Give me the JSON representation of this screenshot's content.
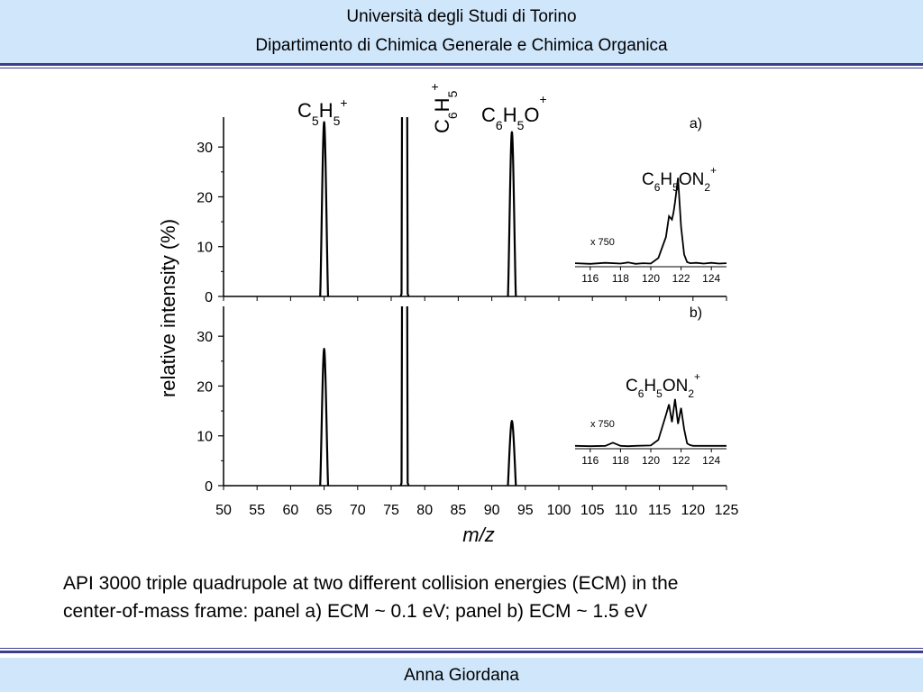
{
  "header": {
    "line1": "Università degli Studi di Torino",
    "line2": "Dipartimento di Chimica Generale e Chimica Organica"
  },
  "footer": {
    "author": "Anna Giordana"
  },
  "caption": {
    "line1": "API 3000 triple quadrupole at two different collision energies (ECM) in the",
    "line2": "center-of-mass frame: panel a) ECM ~ 0.1 eV;  panel b) ECM ~ 1.5 eV"
  },
  "colors": {
    "band": "#cfe6fb",
    "rule": "#3b3d8f",
    "trace": "#000000"
  },
  "chart_data": {
    "type": "line",
    "xlabel": "m/z",
    "ylabel": "relative intensity (%)",
    "xlim": [
      50,
      125
    ],
    "ylim": [
      0,
      36
    ],
    "x_ticks": [
      "50",
      "55",
      "60",
      "65",
      "70",
      "75",
      "80",
      "85",
      "90",
      "95",
      "100",
      "105",
      "110",
      "115",
      "120",
      "125"
    ],
    "y_ticks": [
      "0",
      "10",
      "20",
      "30"
    ],
    "panels": [
      {
        "label": "a)",
        "peaks": [
          {
            "mz": 65,
            "intensity": 35,
            "ion": {
              "base": "C",
              "sub1": "5",
              "mid": "H",
              "sub2": "5",
              "tail": "",
              "sup": "+"
            }
          },
          {
            "mz": 77,
            "intensity": 100,
            "offscale": true,
            "ion": {
              "base": "C",
              "sub1": "6",
              "mid": "H",
              "sub2": "5",
              "tail": "",
              "sup": "+"
            }
          },
          {
            "mz": 93,
            "intensity": 33,
            "ion": {
              "base": "C",
              "sub1": "6",
              "mid": "H",
              "sub2": "5",
              "tail": "O",
              "sup": "+"
            }
          }
        ],
        "inset": {
          "multiplier": "x 750",
          "x_ticks": [
            "116",
            "118",
            "120",
            "122",
            "124"
          ],
          "xlim": [
            115,
            125
          ],
          "ion": {
            "base": "C",
            "sub1": "6",
            "mid": "H",
            "sub2": "5",
            "tail": "ON",
            "sub3": "2",
            "sup": "+"
          },
          "x": [
            115,
            116,
            117,
            118,
            118.5,
            119,
            119.5,
            120,
            120.5,
            121,
            121.2,
            121.4,
            121.5,
            121.6,
            121.8,
            122,
            122.2,
            122.4,
            122.6,
            123,
            123.5,
            124,
            124.5,
            125
          ],
          "y": [
            0.5,
            0.3,
            0.6,
            0.4,
            0.7,
            0.3,
            0.5,
            0.4,
            2.0,
            8.0,
            14.0,
            13.0,
            15.0,
            18.0,
            25.0,
            11.0,
            3.0,
            0.8,
            0.5,
            0.6,
            0.4,
            0.6,
            0.4,
            0.5
          ]
        }
      },
      {
        "label": "b)",
        "peaks": [
          {
            "mz": 65,
            "intensity": 27.5
          },
          {
            "mz": 77,
            "intensity": 100,
            "offscale": true
          },
          {
            "mz": 93,
            "intensity": 13
          }
        ],
        "inset": {
          "multiplier": "x 750",
          "x_ticks": [
            "116",
            "118",
            "120",
            "122",
            "124"
          ],
          "xlim": [
            115,
            125
          ],
          "ion": {
            "base": "C",
            "sub1": "6",
            "mid": "H",
            "sub2": "5",
            "tail": "ON",
            "sub3": "2",
            "sup": "+"
          },
          "x": [
            115,
            116,
            117,
            117.5,
            118,
            118.5,
            119,
            120,
            120.5,
            121,
            121.2,
            121.4,
            121.6,
            121.8,
            122,
            122.2,
            122.4,
            122.6,
            122.8,
            123,
            124,
            125
          ],
          "y": [
            0.3,
            0.2,
            0.3,
            1.2,
            0.3,
            0.2,
            0.3,
            0.4,
            2.0,
            9.0,
            12.0,
            7.0,
            13.5,
            6.5,
            11.0,
            5.0,
            1.0,
            0.5,
            0.3,
            0.3,
            0.3,
            0.3
          ]
        }
      }
    ]
  }
}
